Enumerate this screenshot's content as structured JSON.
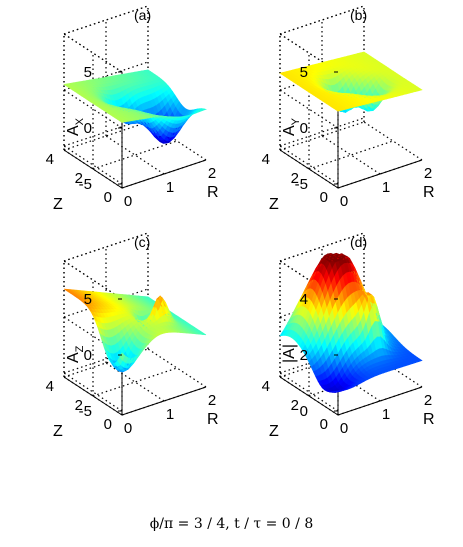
{
  "caption": "ϕ/π = 3 / 4, t / τ = 0 / 8",
  "colormap": "jet",
  "chart_data": [
    {
      "type": "surface",
      "label": "(a)",
      "zlabel_main": "A",
      "zlabel_sub": "X",
      "xlabel": "R",
      "ylabel": "Z",
      "xlim": [
        0,
        2
      ],
      "ylim": [
        0,
        4
      ],
      "zlim": [
        -5,
        5
      ],
      "xticks": [
        0,
        1,
        2
      ],
      "yticks": [
        0,
        2,
        4
      ],
      "zticks": [
        -5,
        0,
        5
      ],
      "grid": true,
      "surface": {
        "base": 0.5,
        "slope_R": -0.6,
        "wave": 0,
        "features": [
          {
            "R": 1.5,
            "Z": 1.4,
            "amp": -4.0,
            "width": 0.33
          },
          {
            "R": 0.85,
            "Z": 2.3,
            "amp": -2.3,
            "width": 0.25
          }
        ]
      }
    },
    {
      "type": "surface",
      "label": "(b)",
      "zlabel_main": "A",
      "zlabel_sub": "Y",
      "xlabel": "R",
      "ylabel": "Z",
      "xlim": [
        0,
        2
      ],
      "ylim": [
        0,
        4
      ],
      "zlim": [
        -5,
        5
      ],
      "xticks": [
        0,
        1,
        2
      ],
      "yticks": [
        0,
        2,
        4
      ],
      "zticks": [
        -5,
        0,
        5
      ],
      "grid": true,
      "surface": {
        "base": 1.5,
        "slope_R": -0.3,
        "wave": 0,
        "features": [
          {
            "R": 0.9,
            "Z": 2.3,
            "amp": -2.8,
            "width": 0.22
          },
          {
            "R": 1.3,
            "Z": 1.5,
            "amp": -2.4,
            "width": 0.22
          }
        ]
      }
    },
    {
      "type": "surface",
      "label": "(c)",
      "zlabel_main": "A",
      "zlabel_sub": "Z",
      "xlabel": "R",
      "ylabel": "Z",
      "xlim": [
        0,
        2
      ],
      "ylim": [
        0,
        4
      ],
      "zlim": [
        -5,
        5
      ],
      "xticks": [
        0,
        1,
        2
      ],
      "yticks": [
        0,
        2,
        4
      ],
      "zticks": [
        -5,
        0,
        5
      ],
      "grid": true,
      "surface": {
        "base": 2.5,
        "slope_R": -1.6,
        "wave": 0,
        "features": [
          {
            "R": 0.2,
            "Z": 0.7,
            "amp": -4.5,
            "width": 0.35
          },
          {
            "R": 1.35,
            "Z": 1.4,
            "amp": 2.8,
            "width": 0.15
          },
          {
            "R": 1.25,
            "Z": 1.8,
            "amp": -2.5,
            "width": 0.15
          }
        ]
      }
    },
    {
      "type": "surface",
      "label": "(d)",
      "zlabel_main": "|A|",
      "zlabel_sub": "",
      "xlabel": "R",
      "ylabel": "Z",
      "xlim": [
        0,
        2
      ],
      "ylim": [
        0,
        4
      ],
      "zlim": [
        0,
        4
      ],
      "xticks": [
        0,
        1,
        2
      ],
      "yticks": [
        0,
        2,
        4
      ],
      "zticks": [
        0,
        2,
        4
      ],
      "grid": true,
      "surface": {
        "base": 0.8,
        "slope_R": 0,
        "wave": 0,
        "features": [
          {
            "R": 0.8,
            "Z": 3.2,
            "amp": 2.6,
            "width": 0.5
          },
          {
            "R": 1.2,
            "Z": 2.6,
            "amp": 1.5,
            "width": 0.4
          },
          {
            "R": 0.25,
            "Z": 1.0,
            "amp": -0.6,
            "width": 0.3
          },
          {
            "R": 1.35,
            "Z": 1.5,
            "amp": 1.2,
            "width": 0.15
          }
        ]
      }
    }
  ]
}
